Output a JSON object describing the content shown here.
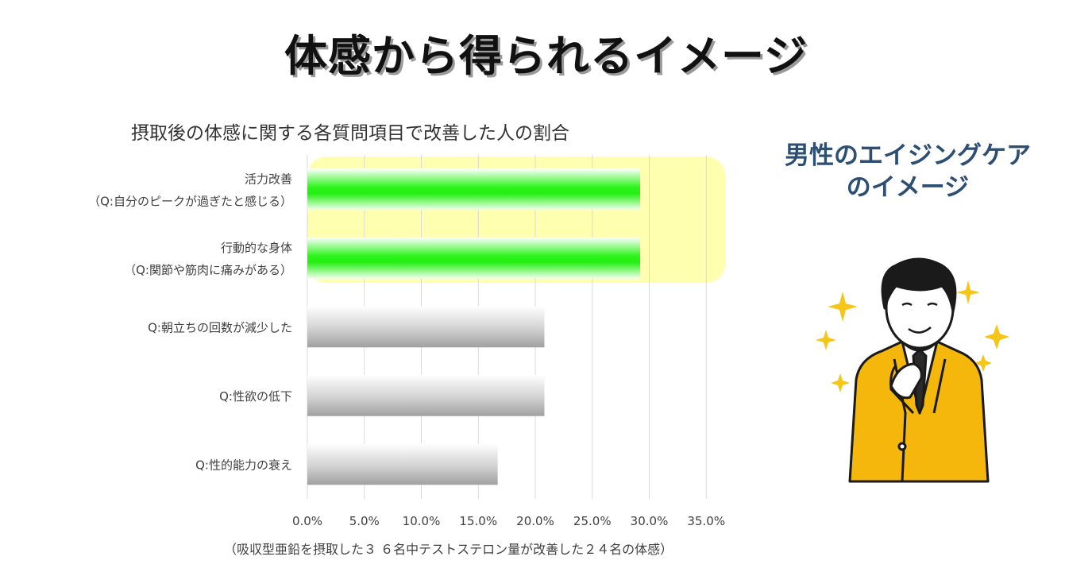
{
  "page": {
    "main_title": "体感から得られるイメージ",
    "side_title_line1": "男性のエイジングケア",
    "side_title_line2": "のイメージ",
    "footnote": "（吸収型亜鉛を摂取した３ ６名中テストステロン量が改善した２４名の体感）"
  },
  "chart_data": {
    "type": "bar",
    "orientation": "horizontal",
    "title": "摂取後の体感に関する各質問項目で改善した人の割合",
    "categories": [
      [
        "活力改善",
        "（Q:自分のピークが過ぎたと感じる）"
      ],
      [
        "行動的な身体",
        "（Q:関節や筋肉に痛みがある）"
      ],
      [
        "Q:朝立ちの回数が減少した"
      ],
      [
        "Q:性欲の低下"
      ],
      [
        "Q:性的能力の衰え"
      ]
    ],
    "values": [
      29.2,
      29.2,
      20.8,
      20.8,
      16.7
    ],
    "highlighted": [
      true,
      true,
      false,
      false,
      false
    ],
    "xlim": [
      0,
      35
    ],
    "ticks": [
      "0.0%",
      "5.0%",
      "10.0%",
      "15.0%",
      "20.0%",
      "25.0%",
      "30.0%",
      "35.0%"
    ],
    "tick_values": [
      0,
      5,
      10,
      15,
      20,
      25,
      30,
      35
    ],
    "grid": true,
    "colors": {
      "highlight_bar": "#22ee11",
      "normal_bar": "#a6a6a6",
      "highlight_box": "#ffffb0",
      "gridline": "#d9d9d9"
    }
  }
}
